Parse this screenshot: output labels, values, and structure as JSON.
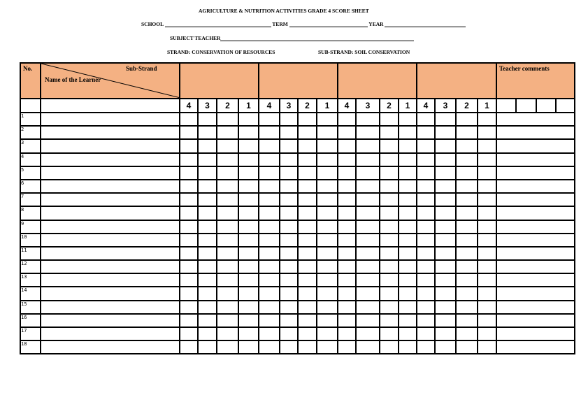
{
  "title": "AGRICULTURE & NUTRITION ACTIVITIES GRADE 4 SCORE SHEET",
  "fields": {
    "school": "SCHOOL",
    "term": "TERM",
    "year": "YEAR",
    "subject_teacher": "SUBJECT TEACHER"
  },
  "strand": "STRAND: CONSERVATION OF RESOURCES",
  "sub_strand": "SUB-STRAND: SOIL CONSERVATION",
  "table": {
    "no_header": "No.",
    "sub_strand_header": "Sub-Strand",
    "name_header": "Name of the Learner",
    "comments_header": "Teacher comments",
    "score_levels": [
      "4",
      "3",
      "2",
      "1"
    ],
    "rows": [
      "1",
      "2",
      "3",
      "4",
      "5",
      "6",
      "7",
      "8",
      "9",
      "10",
      "11",
      "12",
      "13",
      "14",
      "15",
      "16",
      "17",
      "18"
    ]
  },
  "colors": {
    "header_fill": "#f4b183"
  }
}
